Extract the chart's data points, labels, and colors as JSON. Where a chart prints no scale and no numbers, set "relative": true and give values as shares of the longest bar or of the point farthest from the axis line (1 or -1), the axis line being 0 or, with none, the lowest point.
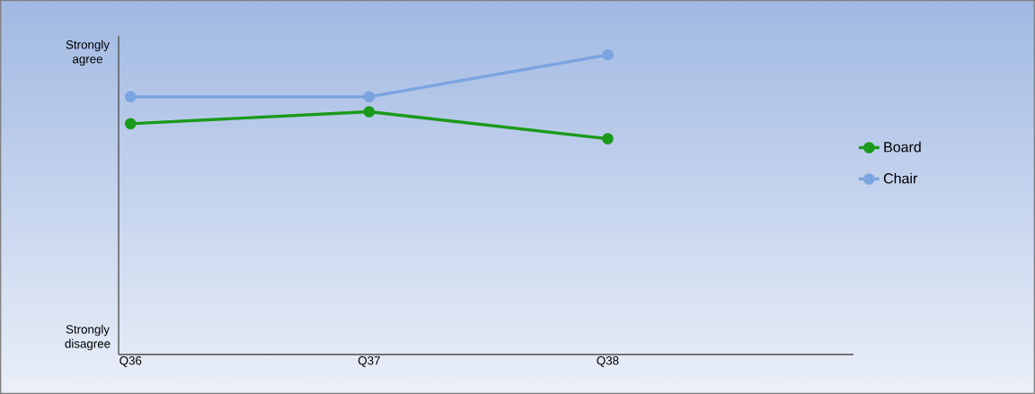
{
  "chart_data": {
    "type": "line",
    "categories": [
      "Q36",
      "Q37",
      "Q38"
    ],
    "series": [
      {
        "name": "Board",
        "color": "#1a9a1a",
        "values": [
          0.77,
          0.81,
          0.72
        ]
      },
      {
        "name": "Chair",
        "color": "#7ba4e0",
        "values": [
          0.86,
          0.86,
          1
        ]
      }
    ],
    "relative": true,
    "annotations": [
      "Strongly agree",
      "Strongly disagree"
    ],
    "marker": "circle",
    "line_style": "solid",
    "legend": "right",
    "grid": false
  }
}
